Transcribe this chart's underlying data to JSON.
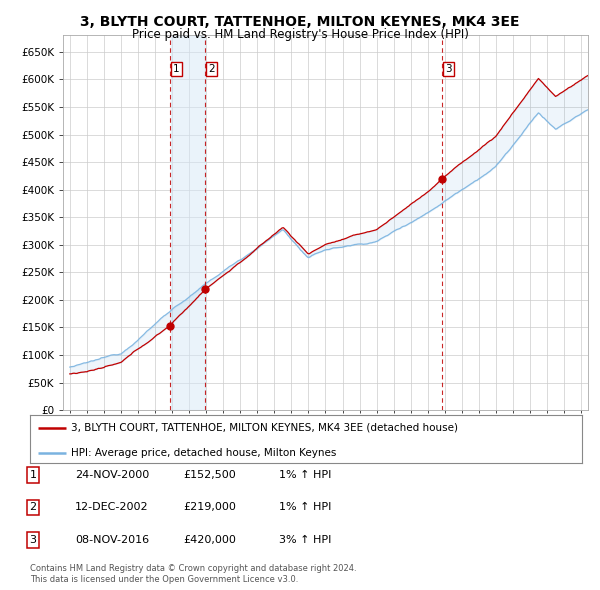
{
  "title": "3, BLYTH COURT, TATTENHOE, MILTON KEYNES, MK4 3EE",
  "subtitle": "Price paid vs. HM Land Registry's House Price Index (HPI)",
  "legend_line1": "3, BLYTH COURT, TATTENHOE, MILTON KEYNES, MK4 3EE (detached house)",
  "legend_line2": "HPI: Average price, detached house, Milton Keynes",
  "footer1": "Contains HM Land Registry data © Crown copyright and database right 2024.",
  "footer2": "This data is licensed under the Open Government Licence v3.0.",
  "transactions": [
    {
      "num": 1,
      "date": "24-NOV-2000",
      "price": "£152,500",
      "pct": "1%",
      "dir": "↑",
      "label": "HPI"
    },
    {
      "num": 2,
      "date": "12-DEC-2002",
      "price": "£219,000",
      "pct": "1%",
      "dir": "↑",
      "label": "HPI"
    },
    {
      "num": 3,
      "date": "08-NOV-2016",
      "price": "£420,000",
      "pct": "3%",
      "dir": "↑",
      "label": "HPI"
    }
  ],
  "sale_dates": [
    2000.9,
    2002.95,
    2016.85
  ],
  "sale_prices": [
    152500,
    219000,
    420000
  ],
  "hpi_color": "#7ab3e0",
  "price_color": "#c00000",
  "vline_color": "#c00000",
  "shade_color": "#d6e8f7",
  "bg_color": "#ffffff",
  "grid_color": "#cccccc",
  "ylim": [
    0,
    680000
  ],
  "yticks": [
    0,
    50000,
    100000,
    150000,
    200000,
    250000,
    300000,
    350000,
    400000,
    450000,
    500000,
    550000,
    600000,
    650000
  ],
  "xlim_left": 1994.6,
  "xlim_right": 2025.4,
  "title_fontsize": 10,
  "subtitle_fontsize": 8.5
}
